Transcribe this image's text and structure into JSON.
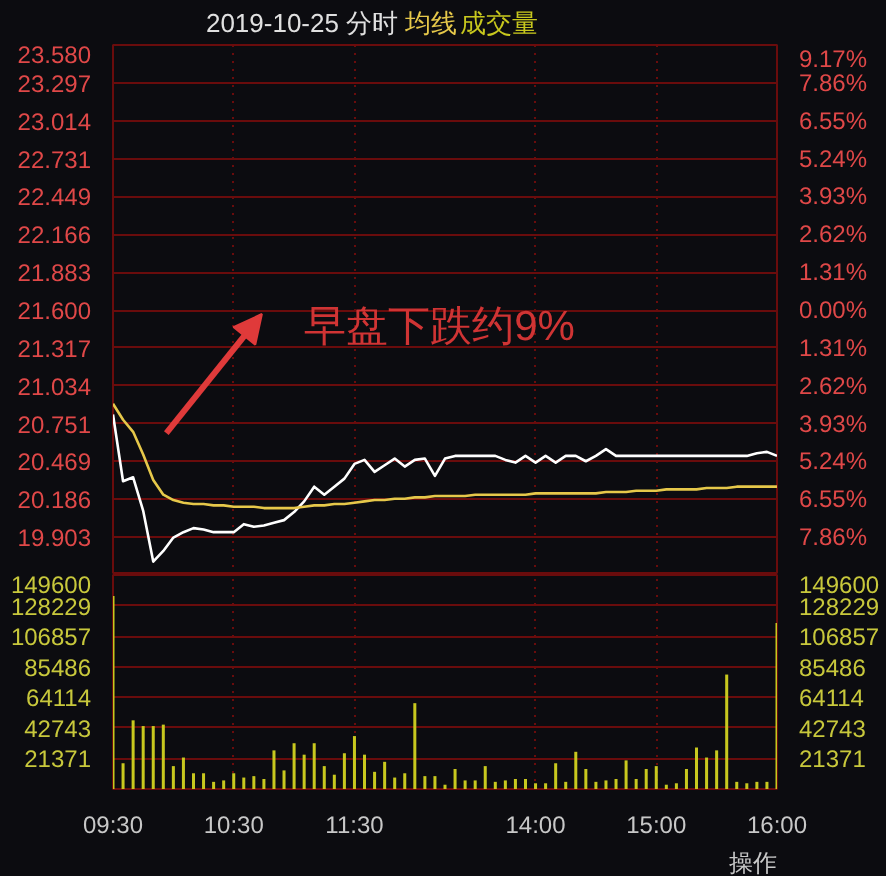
{
  "chart_data": [
    {
      "type": "line",
      "title": "2019-10-25 分时",
      "categories": [
        null,
        null,
        null,
        null,
        null,
        null,
        null,
        null,
        null,
        null,
        null,
        null,
        null,
        null,
        null,
        null,
        null,
        null,
        null,
        null,
        null,
        null,
        null,
        null,
        null,
        null,
        null,
        null,
        null,
        null,
        null,
        null,
        null,
        null,
        null,
        null,
        null,
        null,
        null,
        null,
        null,
        null,
        null,
        null,
        null,
        null,
        null,
        null,
        null,
        null,
        null,
        null,
        null,
        null,
        null,
        null,
        null,
        null,
        null,
        null,
        null,
        null,
        null,
        null,
        null,
        null,
        null
      ],
      "ylim": [
        19.62,
        23.58
      ],
      "yticks": [
        19.903,
        20.186,
        20.469,
        20.751,
        21.034,
        21.317,
        {
          "value": 21.6,
          "label": "21.600"
        },
        21.883,
        22.166,
        22.449,
        22.731,
        23.014,
        23.297,
        {
          "value": 23.58,
          "label": "23.580"
        }
      ],
      "y2lim": [
        -9.17,
        9.17
      ],
      "y2ticks": [
        {
          "value": -7.86,
          "label": "7.86%"
        },
        {
          "value": -6.55,
          "label": "6.55%"
        },
        {
          "value": -5.24,
          "label": "5.24%"
        },
        {
          "value": -3.93,
          "label": "3.93%"
        },
        {
          "value": -2.62,
          "label": "2.62%"
        },
        {
          "value": -1.31,
          "label": "1.31%"
        },
        {
          "value": 0,
          "label": "0.00%"
        },
        {
          "value": 1.31,
          "label": "1.31%"
        },
        {
          "value": 2.62,
          "label": "2.62%"
        },
        {
          "value": 3.93,
          "label": "3.93%"
        },
        {
          "value": 5.24,
          "label": "5.24%"
        },
        {
          "value": 6.55,
          "label": "6.55%"
        },
        {
          "value": 7.86,
          "label": "7.86%"
        },
        {
          "value": 9.17,
          "label": "9.17%"
        }
      ],
      "tick_labels": "y",
      "grid": true,
      "legend": "top",
      "annotations": [
        "早盘下跌约9%"
      ],
      "series": [
        {
          "color": "#ffffff",
          "values": [
            20.82,
            20.32,
            20.35,
            20.1,
            19.72,
            19.8,
            19.9,
            19.94,
            19.97,
            19.96,
            19.94,
            19.94,
            19.94,
            20.0,
            19.98,
            19.99,
            20.01,
            20.03,
            20.09,
            20.17,
            20.28,
            20.22,
            20.28,
            20.34,
            20.45,
            20.48,
            20.39,
            20.44,
            20.49,
            20.43,
            20.48,
            20.49,
            20.36,
            20.49,
            20.51,
            20.51,
            20.51,
            20.51,
            20.51,
            20.48,
            20.46,
            20.51,
            20.46,
            20.51,
            20.46,
            20.51,
            20.51,
            20.47,
            20.51,
            20.56,
            20.51,
            20.51,
            20.51,
            20.51,
            20.51,
            20.51,
            20.51,
            20.51,
            20.51,
            20.51,
            20.51,
            20.51,
            20.51,
            20.51,
            20.53,
            20.54,
            20.51
          ]
        },
        {
          "name": "均线",
          "color": "#e6c84a",
          "values": [
            20.9,
            20.78,
            20.69,
            20.52,
            20.33,
            20.22,
            20.18,
            20.16,
            20.15,
            20.15,
            20.14,
            20.14,
            20.13,
            20.13,
            20.13,
            20.12,
            20.12,
            20.12,
            20.12,
            20.13,
            20.14,
            20.14,
            20.15,
            20.15,
            20.16,
            20.17,
            20.18,
            20.18,
            20.19,
            20.19,
            20.2,
            20.2,
            20.21,
            20.21,
            20.21,
            20.21,
            20.22,
            20.22,
            20.22,
            20.22,
            20.22,
            20.22,
            20.23,
            20.23,
            20.23,
            20.23,
            20.23,
            20.23,
            20.23,
            20.24,
            20.24,
            20.24,
            20.25,
            20.25,
            20.25,
            20.26,
            20.26,
            20.26,
            20.26,
            20.27,
            20.27,
            20.27,
            20.28,
            20.28,
            20.28,
            20.28,
            20.28
          ]
        }
      ]
    },
    {
      "type": "bar",
      "categories": [
        "09:30",
        null,
        null,
        null,
        null,
        null,
        null,
        null,
        null,
        null,
        null,
        null,
        "10:30",
        null,
        null,
        null,
        null,
        null,
        null,
        null,
        null,
        null,
        null,
        null,
        "11:30",
        null,
        null,
        null,
        null,
        null,
        null,
        null,
        null,
        null,
        null,
        null,
        null,
        null,
        null,
        null,
        null,
        null,
        "14:00",
        null,
        null,
        null,
        null,
        null,
        null,
        null,
        null,
        null,
        null,
        null,
        "15:00",
        null,
        null,
        null,
        null,
        null,
        null,
        null,
        null,
        null,
        null,
        null,
        "16:00"
      ],
      "ylim": [
        0,
        149600
      ],
      "yticks": [
        21371,
        42743,
        64114,
        85486,
        106857,
        128229,
        149600
      ],
      "y2lim": [
        0,
        149600
      ],
      "y2ticks": [
        21371,
        42743,
        64114,
        85486,
        106857,
        128229,
        149600
      ],
      "grid": true,
      "legend": "top",
      "annotations": [
        "操作"
      ],
      "series": [
        {
          "name": "成交量",
          "color": "#c8c81e",
          "values": [
            135000,
            18000,
            48000,
            44000,
            44000,
            45000,
            16000,
            22000,
            11000,
            11000,
            5000,
            6000,
            11000,
            8000,
            9000,
            7000,
            27000,
            13000,
            32000,
            24000,
            32000,
            16000,
            10000,
            25000,
            37000,
            24000,
            12000,
            19000,
            8000,
            11000,
            60000,
            9000,
            9000,
            3000,
            14000,
            6000,
            6000,
            16000,
            5000,
            6000,
            7000,
            7000,
            4000,
            4000,
            18000,
            5000,
            26000,
            14000,
            5000,
            6000,
            7000,
            20000,
            7000,
            14000,
            16000,
            3000,
            4000,
            14000,
            29000,
            22000,
            27000,
            80000,
            5000,
            4000,
            5000,
            5000,
            116000
          ]
        }
      ]
    }
  ]
}
